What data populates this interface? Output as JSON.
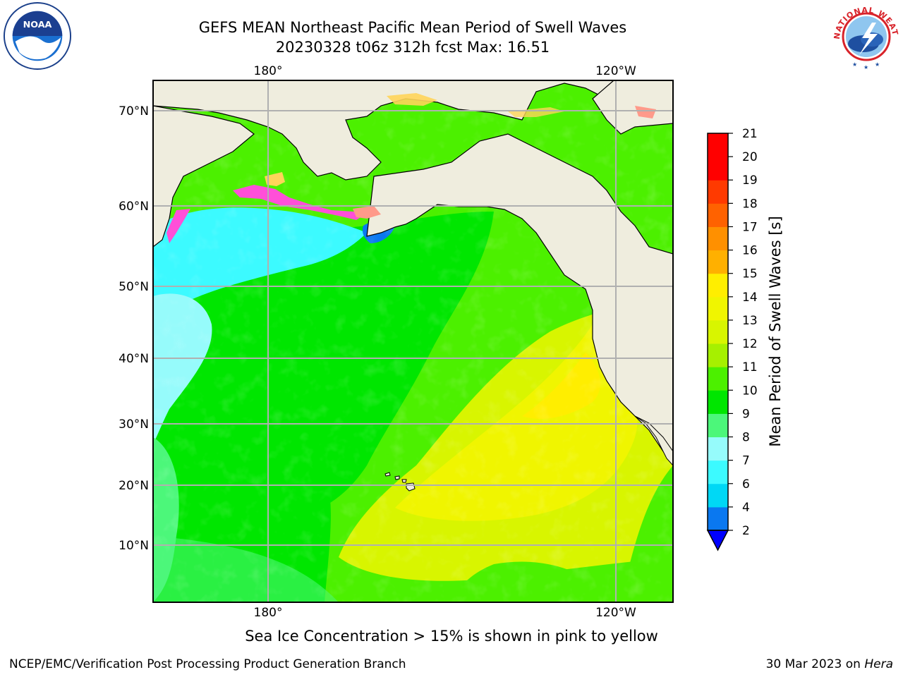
{
  "title_line1": "GEFS MEAN Northeast Pacific Mean Period of Swell Waves",
  "title_line2": "20230328 t06z 312h fcst   Max: 16.51",
  "logos": {
    "left": {
      "icon": "noaa-logo-icon",
      "text": "NOAA"
    },
    "right": {
      "icon": "nws-logo-icon",
      "text": "NATIONAL WEATHER SERVICE"
    }
  },
  "map": {
    "top_lon_labels": [
      "180°",
      "120°W"
    ],
    "bottom_lon_labels": [
      "180°",
      "120°W"
    ],
    "lat_labels": [
      "70°N",
      "60°N",
      "50°N",
      "40°N",
      "30°N",
      "20°N",
      "10°N"
    ],
    "land_color": "#efedde",
    "ice_colors": [
      "#ff4fd8",
      "#ff9a8a",
      "#ffd45a"
    ]
  },
  "colorbar": {
    "label": "Mean Period of Swell Waves [s]",
    "tick_labels": [
      "2",
      "4",
      "6",
      "7",
      "8",
      "9",
      "10",
      "11",
      "12",
      "13",
      "14",
      "15",
      "16",
      "17",
      "18",
      "19",
      "20",
      "21"
    ],
    "colors": [
      "#0a78f0",
      "#00d8f5",
      "#3cfaff",
      "#96fbfb",
      "#4cf77a",
      "#00e600",
      "#4cf000",
      "#a6f000",
      "#d8f500",
      "#f0f500",
      "#ffee00",
      "#ffb000",
      "#ff9000",
      "#ff6200",
      "#ff3a00",
      "#ff0000"
    ],
    "extend_color": "#0000ff"
  },
  "ice_note": "Sea Ice Concentration > 15% is shown in pink to yellow",
  "footer_left": "NCEP/EMC/Verification Post Processing Product Generation Branch",
  "footer_right_date": "30 Mar 2023 on",
  "footer_right_machine": "Hera"
}
